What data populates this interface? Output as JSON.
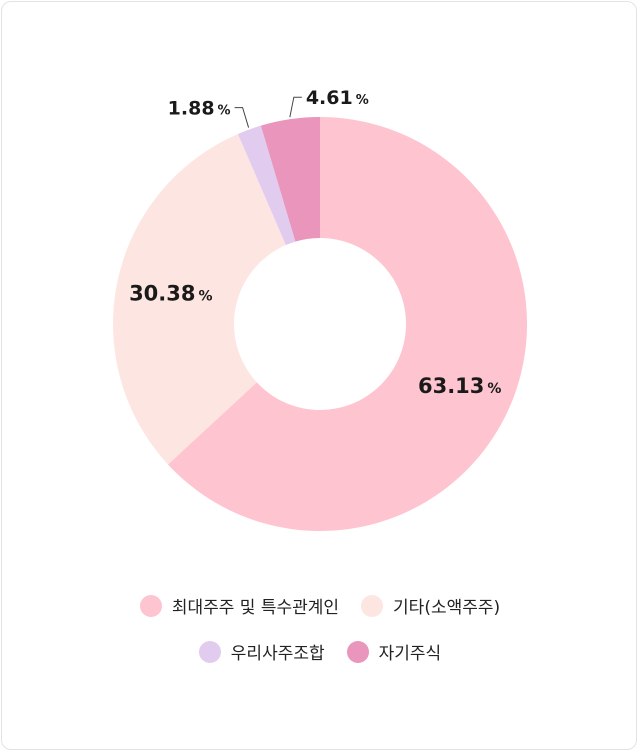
{
  "chart_data": {
    "type": "pie",
    "title": "",
    "unit": "%",
    "slices": [
      {
        "label": "최대주주 및 특수관계인",
        "value": 63.13,
        "display": "63.13",
        "color": "#fec4d0"
      },
      {
        "label": "기타(소액주주)",
        "value": 30.38,
        "display": "30.38",
        "color": "#fde5e2"
      },
      {
        "label": "우리사주조합",
        "value": 1.88,
        "display": "1.88",
        "color": "#e1cbee"
      },
      {
        "label": "자기주식",
        "value": 4.61,
        "display": "4.61",
        "color": "#e995bc"
      }
    ],
    "legend_placement": "bottom"
  }
}
